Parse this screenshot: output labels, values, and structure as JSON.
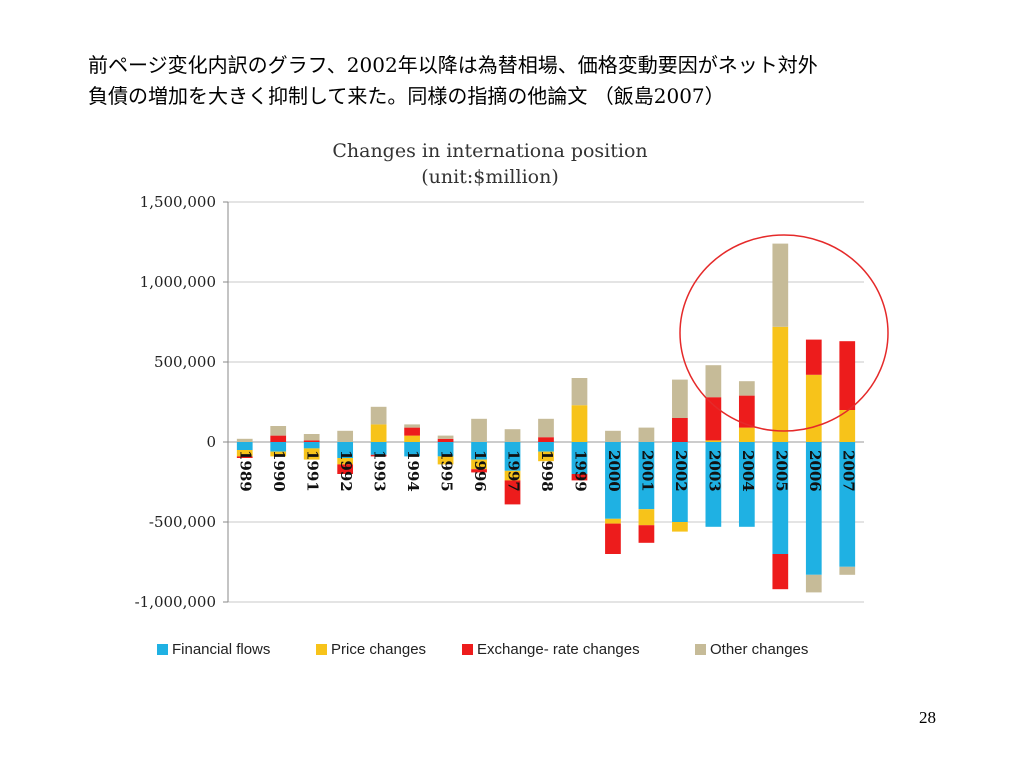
{
  "slide": {
    "heading_line1": "前ページ変化内訳のグラフ、2002年以降は為替相場、価格変動要因がネット対外",
    "heading_line2": "負債の増加を大きく抑制して来た。同様の指摘の他論文 （飯島2007）",
    "page_number": "28"
  },
  "chart_data": {
    "type": "bar",
    "stacked": true,
    "title": "Changes in internationa position",
    "subtitle": "(unit:$million)",
    "xlabel": "",
    "ylabel": "",
    "ylim": [
      -1000000,
      1500000
    ],
    "yticks": [
      -1000000,
      -500000,
      0,
      500000,
      1000000,
      1500000
    ],
    "ytick_labels": [
      "-1,000,000",
      "-500,000",
      "0",
      "500,000",
      "1,000,000",
      "1,500,000"
    ],
    "grid": true,
    "legend_position": "bottom",
    "categories": [
      "1989",
      "1990",
      "1991",
      "1992",
      "1993",
      "1994",
      "1995",
      "1996",
      "1997",
      "1998",
      "1999",
      "2000",
      "2001",
      "2002",
      "2003",
      "2004",
      "2005",
      "2006",
      "2007"
    ],
    "series": [
      {
        "name": "Financial flows",
        "color": "#1fb1e3",
        "values": [
          -50000,
          -60000,
          -40000,
          -100000,
          -80000,
          -90000,
          -90000,
          -110000,
          -180000,
          -60000,
          -200000,
          -480000,
          -420000,
          -500000,
          -530000,
          -530000,
          -700000,
          -830000,
          -780000
        ]
      },
      {
        "name": "Price changes",
        "color": "#f7c31a",
        "values": [
          -40000,
          -30000,
          -70000,
          -40000,
          110000,
          40000,
          -50000,
          -60000,
          -60000,
          -60000,
          230000,
          -30000,
          -100000,
          -60000,
          10000,
          90000,
          720000,
          420000,
          200000
        ]
      },
      {
        "name": "Exchange- rate changes",
        "color": "#ed1c1c",
        "values": [
          -10000,
          40000,
          10000,
          -60000,
          -10000,
          50000,
          20000,
          -20000,
          -150000,
          30000,
          -40000,
          -190000,
          -110000,
          150000,
          270000,
          200000,
          -220000,
          220000,
          430000
        ]
      },
      {
        "name": "Other changes",
        "color": "#c6bb98",
        "values": [
          20000,
          60000,
          40000,
          70000,
          110000,
          20000,
          20000,
          145000,
          80000,
          115000,
          170000,
          70000,
          90000,
          240000,
          200000,
          90000,
          520000,
          0,
          0
        ],
        "extra_negative": [
          0,
          0,
          0,
          0,
          0,
          0,
          0,
          0,
          0,
          0,
          0,
          0,
          0,
          0,
          0,
          0,
          0,
          -110000,
          -50000
        ]
      }
    ],
    "annotation": "circle around 2005-2007 bars"
  }
}
